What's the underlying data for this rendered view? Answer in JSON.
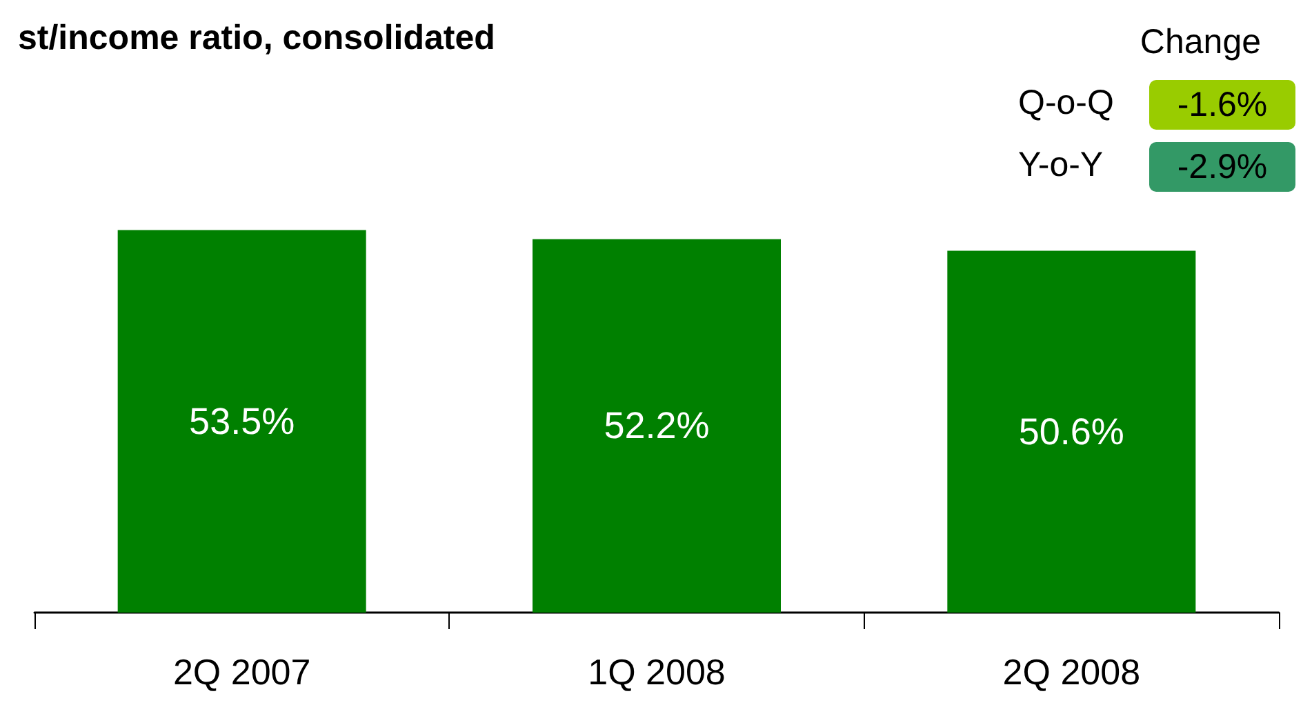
{
  "chart_data": {
    "type": "bar",
    "title": "st/income ratio, consolidated",
    "categories": [
      "2Q 2007",
      "1Q 2008",
      "2Q 2008"
    ],
    "values": [
      53.5,
      52.2,
      50.6
    ],
    "color": "#008000",
    "value_labels": [
      "53.5%",
      "52.2%",
      "50.6%"
    ],
    "annotations": [
      "Change",
      "Q-o-Q",
      "-1.6%",
      "Y-o-Y",
      "-2.9%"
    ]
  }
}
